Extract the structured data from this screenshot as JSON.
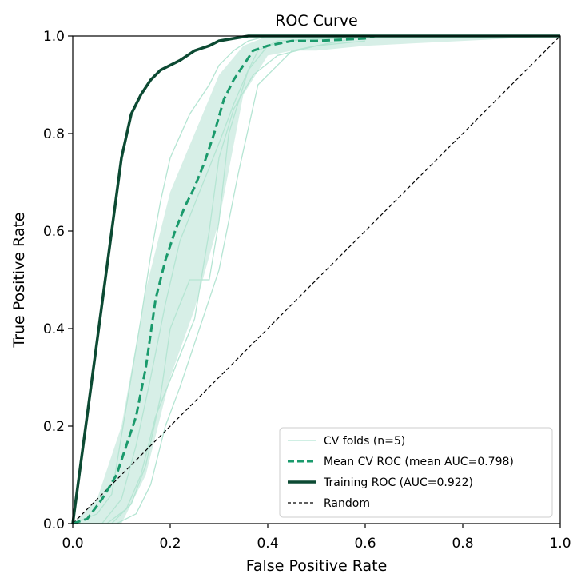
{
  "chart_data": {
    "type": "line",
    "title": "ROC Curve",
    "xlabel": "False Positive Rate",
    "ylabel": "True Positive Rate",
    "xlim": [
      0,
      1
    ],
    "ylim": [
      0,
      1
    ],
    "xticks": [
      "0.0",
      "0.2",
      "0.4",
      "0.6",
      "0.8",
      "1.0"
    ],
    "yticks": [
      "0.0",
      "0.2",
      "0.4",
      "0.6",
      "0.8",
      "1.0"
    ],
    "grid": false,
    "legend_position": "lower-right",
    "colors": {
      "folds": "#b5e5d3",
      "band": "#d3ede4",
      "mean": "#1a9a6c",
      "training": "#0c4a33",
      "random": "#000000"
    },
    "series": [
      {
        "name": "CV folds (n=5)",
        "style": "fold",
        "folds": [
          {
            "x": [
              0,
              0.05,
              0.08,
              0.1,
              0.12,
              0.14,
              0.16,
              0.18,
              0.2,
              0.24,
              0.28,
              0.3,
              0.33,
              0.36,
              0.4,
              0.5,
              0.6
            ],
            "y": [
              0,
              0.02,
              0.06,
              0.18,
              0.3,
              0.42,
              0.55,
              0.66,
              0.75,
              0.84,
              0.9,
              0.94,
              0.97,
              0.99,
              1.0,
              1.0,
              1.0
            ]
          },
          {
            "x": [
              0,
              0.06,
              0.1,
              0.13,
              0.16,
              0.19,
              0.22,
              0.26,
              0.3,
              0.33,
              0.36,
              0.38,
              0.42,
              0.6
            ],
            "y": [
              0,
              0.0,
              0.05,
              0.16,
              0.3,
              0.45,
              0.58,
              0.68,
              0.78,
              0.86,
              0.93,
              0.97,
              0.99,
              1.0
            ]
          },
          {
            "x": [
              0,
              0.08,
              0.12,
              0.15,
              0.18,
              0.2,
              0.24,
              0.28,
              0.3,
              0.32,
              0.36,
              0.4,
              0.44,
              0.62
            ],
            "y": [
              0,
              0.0,
              0.04,
              0.12,
              0.26,
              0.4,
              0.5,
              0.5,
              0.62,
              0.8,
              0.93,
              0.98,
              0.99,
              1.0
            ]
          },
          {
            "x": [
              0,
              0.07,
              0.11,
              0.14,
              0.17,
              0.21,
              0.25,
              0.28,
              0.3,
              0.33,
              0.37,
              0.42,
              0.5,
              0.6
            ],
            "y": [
              0,
              0.0,
              0.03,
              0.1,
              0.22,
              0.32,
              0.42,
              0.6,
              0.75,
              0.85,
              0.92,
              0.96,
              0.98,
              0.99
            ]
          },
          {
            "x": [
              0,
              0.09,
              0.13,
              0.16,
              0.19,
              0.22,
              0.26,
              0.3,
              0.34,
              0.38,
              0.45,
              0.55,
              0.61
            ],
            "y": [
              0,
              0.0,
              0.02,
              0.08,
              0.2,
              0.28,
              0.4,
              0.52,
              0.72,
              0.9,
              0.97,
              0.99,
              1.0
            ]
          }
        ],
        "band_x": [
          0,
          0.05,
          0.1,
          0.15,
          0.2,
          0.25,
          0.3,
          0.35,
          0.4,
          0.45,
          0.5,
          0.6,
          1.0
        ],
        "band_upper": [
          0,
          0.05,
          0.2,
          0.48,
          0.68,
          0.8,
          0.92,
          0.98,
          1.0,
          1.0,
          1.0,
          1.0,
          1.0
        ],
        "band_lower": [
          0,
          0.0,
          0.0,
          0.1,
          0.3,
          0.44,
          0.62,
          0.88,
          0.96,
          0.97,
          0.97,
          0.98,
          1.0
        ]
      },
      {
        "name": "Mean CV ROC (mean AUC=0.798)",
        "style": "mean",
        "x": [
          0,
          0.03,
          0.06,
          0.09,
          0.11,
          0.13,
          0.15,
          0.17,
          0.19,
          0.21,
          0.23,
          0.25,
          0.27,
          0.29,
          0.31,
          0.33,
          0.35,
          0.37,
          0.4,
          0.45,
          0.5,
          0.6,
          0.62,
          1.0
        ],
        "y": [
          0,
          0.01,
          0.05,
          0.1,
          0.16,
          0.22,
          0.32,
          0.46,
          0.54,
          0.6,
          0.65,
          0.69,
          0.74,
          0.8,
          0.87,
          0.91,
          0.94,
          0.97,
          0.98,
          0.99,
          0.99,
          0.995,
          1.0,
          1.0
        ]
      },
      {
        "name": "Training ROC (AUC=0.922)",
        "style": "training",
        "x": [
          0,
          0.04,
          0.08,
          0.1,
          0.12,
          0.14,
          0.16,
          0.18,
          0.2,
          0.22,
          0.25,
          0.28,
          0.3,
          0.33,
          0.36,
          0.4,
          0.5,
          0.6,
          0.8,
          1.0
        ],
        "y": [
          0,
          0.3,
          0.6,
          0.75,
          0.84,
          0.88,
          0.91,
          0.93,
          0.94,
          0.95,
          0.97,
          0.98,
          0.99,
          0.995,
          1.0,
          1.0,
          1.0,
          1.0,
          1.0,
          1.0
        ]
      },
      {
        "name": "Random",
        "style": "random",
        "x": [
          0,
          1
        ],
        "y": [
          0,
          1
        ]
      }
    ]
  }
}
